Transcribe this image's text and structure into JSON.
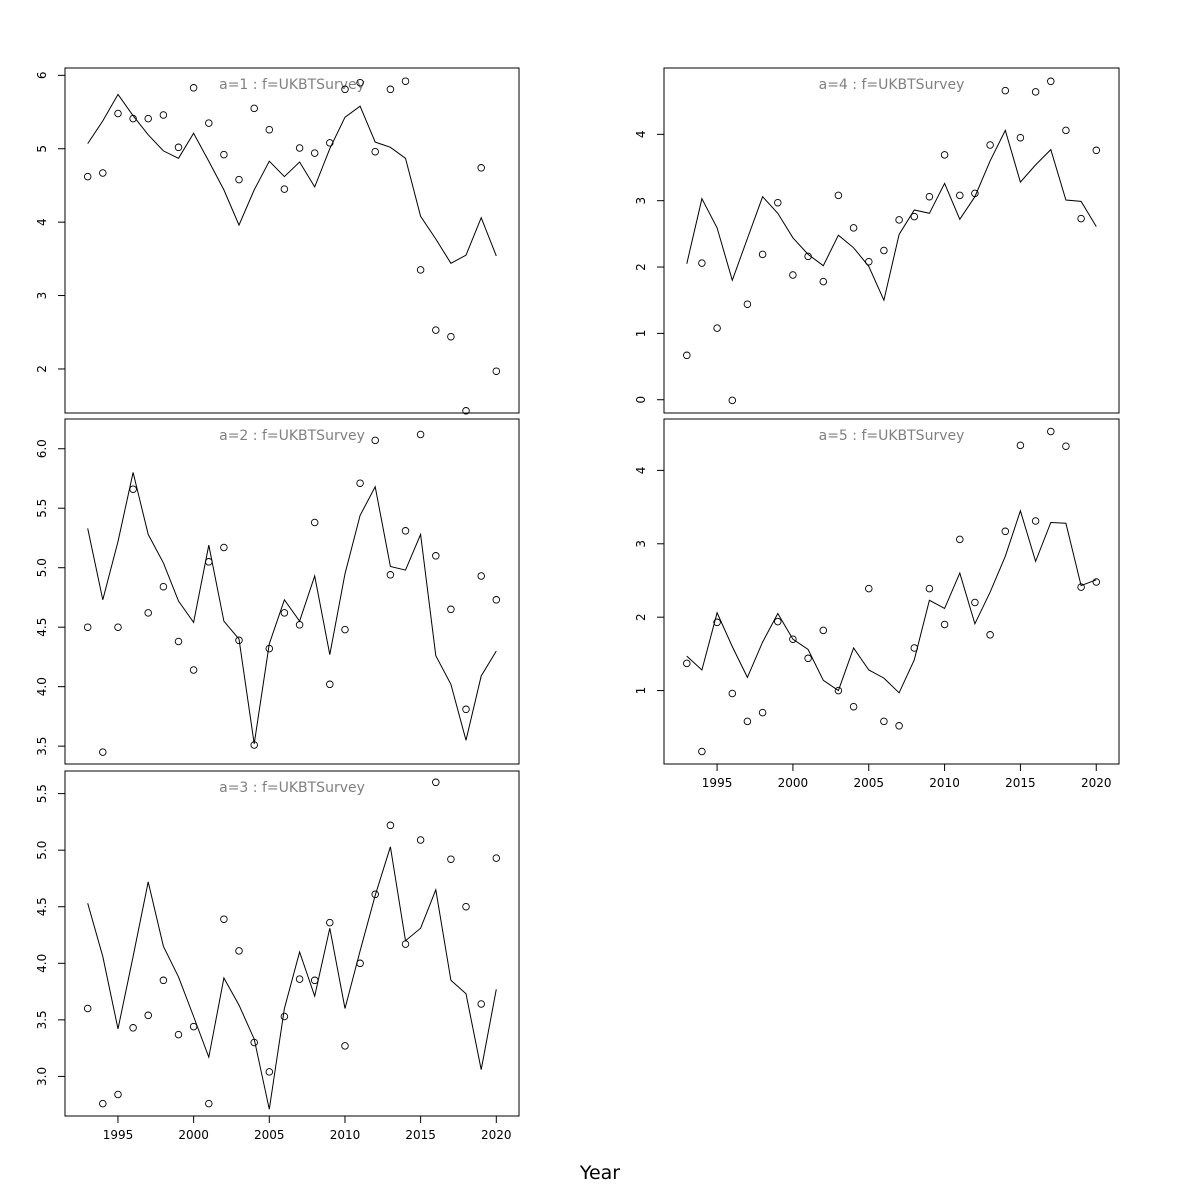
{
  "figure": {
    "xlabel": "Year",
    "colors": {
      "line": "#000000",
      "points": "#000000",
      "panel_title": "#808080",
      "frame": "#000000"
    }
  },
  "chart_data": [
    {
      "type": "line",
      "title": "a=1 : f=UKBTSurvey",
      "x": [
        1993,
        1994,
        1995,
        1996,
        1997,
        1998,
        1999,
        2000,
        2001,
        2002,
        2003,
        2004,
        2005,
        2006,
        2007,
        2008,
        2009,
        2010,
        2011,
        2012,
        2013,
        2014,
        2015,
        2016,
        2017,
        2018,
        2019,
        2020
      ],
      "series": [
        {
          "kind": "points",
          "values": [
            4.62,
            4.67,
            5.48,
            5.41,
            5.41,
            5.46,
            5.02,
            5.83,
            5.35,
            4.92,
            4.58,
            5.55,
            5.26,
            4.45,
            5.01,
            4.94,
            5.08,
            5.81,
            5.9,
            4.96,
            5.81,
            5.92,
            3.35,
            2.53,
            2.44,
            1.43,
            4.74,
            1.97
          ]
        },
        {
          "kind": "line",
          "values": [
            5.07,
            5.38,
            5.74,
            5.45,
            5.19,
            4.97,
            4.87,
            5.21,
            4.83,
            4.44,
            3.96,
            4.44,
            4.83,
            4.62,
            4.82,
            4.48,
            5.0,
            5.43,
            5.58,
            5.09,
            5.02,
            4.87,
            4.08,
            3.77,
            3.44,
            3.55,
            4.06,
            3.54
          ]
        }
      ],
      "xlim": [
        1991.5,
        2021.5
      ],
      "ylim": [
        1.4,
        6.1
      ],
      "yticks": [
        2,
        3,
        4,
        5,
        6
      ],
      "ytick_labels": [
        "2",
        "3",
        "4",
        "5",
        "6"
      ],
      "xticks": [
        1995,
        2000,
        2005,
        2010,
        2015,
        2020
      ],
      "xtick_labels": [
        "1995",
        "2000",
        "2005",
        "2010",
        "2015",
        "2020"
      ],
      "show_xticks": false,
      "grid": false,
      "position_hint": "column-1 row-1"
    },
    {
      "type": "line",
      "title": "a=2 : f=UKBTSurvey",
      "x": [
        1993,
        1994,
        1995,
        1996,
        1997,
        1998,
        1999,
        2000,
        2001,
        2002,
        2003,
        2004,
        2005,
        2006,
        2007,
        2008,
        2009,
        2010,
        2011,
        2012,
        2013,
        2014,
        2015,
        2016,
        2017,
        2018,
        2019,
        2020
      ],
      "series": [
        {
          "kind": "points",
          "values": [
            4.5,
            3.45,
            4.5,
            5.66,
            4.62,
            4.84,
            4.38,
            4.14,
            5.05,
            5.17,
            4.39,
            3.51,
            4.32,
            4.62,
            4.52,
            5.38,
            4.02,
            4.48,
            5.71,
            6.07,
            4.94,
            5.31,
            6.12,
            5.1,
            4.65,
            3.81,
            4.93,
            4.73
          ]
        },
        {
          "kind": "line",
          "values": [
            5.33,
            4.73,
            5.22,
            5.8,
            5.28,
            5.04,
            4.72,
            4.54,
            5.19,
            4.55,
            4.4,
            3.52,
            4.36,
            4.73,
            4.55,
            4.93,
            4.27,
            4.95,
            5.44,
            5.68,
            5.01,
            4.98,
            5.28,
            4.26,
            4.02,
            3.55,
            4.09,
            4.3
          ]
        }
      ],
      "xlim": [
        1991.5,
        2021.5
      ],
      "ylim": [
        3.35,
        6.25
      ],
      "yticks": [
        3.5,
        4.0,
        4.5,
        5.0,
        5.5,
        6.0
      ],
      "ytick_labels": [
        "3.5",
        "4.0",
        "4.5",
        "5.0",
        "5.5",
        "6.0"
      ],
      "xticks": [
        1995,
        2000,
        2005,
        2010,
        2015,
        2020
      ],
      "xtick_labels": [
        "1995",
        "2000",
        "2005",
        "2010",
        "2015",
        "2020"
      ],
      "show_xticks": false,
      "grid": false,
      "position_hint": "column-1 row-2"
    },
    {
      "type": "line",
      "title": "a=3 : f=UKBTSurvey",
      "x": [
        1993,
        1994,
        1995,
        1996,
        1997,
        1998,
        1999,
        2000,
        2001,
        2002,
        2003,
        2004,
        2005,
        2006,
        2007,
        2008,
        2009,
        2010,
        2011,
        2012,
        2013,
        2014,
        2015,
        2016,
        2017,
        2018,
        2019,
        2020
      ],
      "series": [
        {
          "kind": "points",
          "values": [
            3.6,
            2.76,
            2.84,
            3.43,
            3.54,
            3.85,
            3.37,
            3.44,
            2.76,
            4.39,
            4.11,
            3.3,
            3.04,
            3.53,
            3.86,
            3.85,
            4.36,
            3.27,
            4.0,
            4.61,
            5.22,
            4.17,
            5.09,
            5.6,
            4.92,
            4.5,
            3.64,
            4.93
          ]
        },
        {
          "kind": "line",
          "values": [
            4.53,
            4.06,
            3.42,
            4.06,
            4.72,
            4.15,
            3.88,
            3.53,
            3.17,
            3.87,
            3.63,
            3.33,
            2.71,
            3.6,
            4.1,
            3.71,
            4.31,
            3.6,
            4.11,
            4.6,
            5.03,
            4.2,
            4.31,
            4.65,
            3.85,
            3.73,
            3.06,
            3.77
          ]
        }
      ],
      "xlim": [
        1991.5,
        2021.5
      ],
      "ylim": [
        2.65,
        5.7
      ],
      "yticks": [
        3.0,
        3.5,
        4.0,
        4.5,
        5.0,
        5.5
      ],
      "ytick_labels": [
        "3.0",
        "3.5",
        "4.0",
        "4.5",
        "5.0",
        "5.5"
      ],
      "xticks": [
        1995,
        2000,
        2005,
        2010,
        2015,
        2020
      ],
      "xtick_labels": [
        "1995",
        "2000",
        "2005",
        "2010",
        "2015",
        "2020"
      ],
      "show_xticks": true,
      "grid": false,
      "position_hint": "column-1 row-3"
    },
    {
      "type": "line",
      "title": "a=4 : f=UKBTSurvey",
      "x": [
        1993,
        1994,
        1995,
        1996,
        1997,
        1998,
        1999,
        2000,
        2001,
        2002,
        2003,
        2004,
        2005,
        2006,
        2007,
        2008,
        2009,
        2010,
        2011,
        2012,
        2013,
        2014,
        2015,
        2016,
        2017,
        2018,
        2019,
        2020
      ],
      "series": [
        {
          "kind": "points",
          "values": [
            0.67,
            2.06,
            1.08,
            -0.01,
            1.44,
            2.19,
            2.97,
            1.88,
            2.16,
            1.78,
            3.08,
            2.59,
            2.08,
            2.25,
            2.71,
            2.76,
            3.06,
            3.69,
            3.08,
            3.11,
            3.84,
            4.66,
            3.95,
            4.64,
            4.8,
            4.06,
            2.73,
            3.76
          ]
        },
        {
          "kind": "line",
          "values": [
            2.05,
            3.03,
            2.59,
            1.8,
            2.43,
            3.06,
            2.81,
            2.44,
            2.19,
            2.02,
            2.48,
            2.29,
            2.01,
            1.5,
            2.49,
            2.86,
            2.81,
            3.26,
            2.72,
            3.06,
            3.6,
            4.06,
            3.28,
            3.54,
            3.77,
            3.01,
            2.99,
            2.61
          ]
        }
      ],
      "xlim": [
        1991.5,
        2021.5
      ],
      "ylim": [
        -0.2,
        5.0
      ],
      "yticks": [
        0,
        1,
        2,
        3,
        4
      ],
      "ytick_labels": [
        "0",
        "1",
        "2",
        "3",
        "4"
      ],
      "xticks": [
        1995,
        2000,
        2005,
        2010,
        2015,
        2020
      ],
      "xtick_labels": [
        "1995",
        "2000",
        "2005",
        "2010",
        "2015",
        "2020"
      ],
      "show_xticks": false,
      "grid": false,
      "position_hint": "column-2 row-1"
    },
    {
      "type": "line",
      "title": "a=5 : f=UKBTSurvey",
      "x": [
        1993,
        1994,
        1995,
        1996,
        1997,
        1998,
        1999,
        2000,
        2001,
        2002,
        2003,
        2004,
        2005,
        2006,
        2007,
        2008,
        2009,
        2010,
        2011,
        2012,
        2013,
        2014,
        2015,
        2016,
        2017,
        2018,
        2019,
        2020
      ],
      "series": [
        {
          "kind": "points",
          "values": [
            1.37,
            0.17,
            1.93,
            0.96,
            0.58,
            0.7,
            1.94,
            1.7,
            1.44,
            1.82,
            1.0,
            0.78,
            2.39,
            0.58,
            0.52,
            1.58,
            2.39,
            1.9,
            3.06,
            2.2,
            1.76,
            3.17,
            4.34,
            3.31,
            4.53,
            4.33,
            2.41,
            2.48
          ]
        },
        {
          "kind": "line",
          "values": [
            1.47,
            1.28,
            2.06,
            1.6,
            1.18,
            1.66,
            2.05,
            1.7,
            1.56,
            1.14,
            1.0,
            1.58,
            1.28,
            1.17,
            0.97,
            1.42,
            2.23,
            2.12,
            2.6,
            1.91,
            2.34,
            2.83,
            3.45,
            2.76,
            3.29,
            3.28,
            2.43,
            2.51
          ]
        }
      ],
      "xlim": [
        1991.5,
        2021.5
      ],
      "ylim": [
        0.0,
        4.7
      ],
      "yticks": [
        1,
        2,
        3,
        4
      ],
      "ytick_labels": [
        "1",
        "2",
        "3",
        "4"
      ],
      "xticks": [
        1995,
        2000,
        2005,
        2010,
        2015,
        2020
      ],
      "xtick_labels": [
        "1995",
        "2000",
        "2005",
        "2010",
        "2015",
        "2020"
      ],
      "show_xticks": true,
      "grid": false,
      "position_hint": "column-2 row-2"
    }
  ]
}
